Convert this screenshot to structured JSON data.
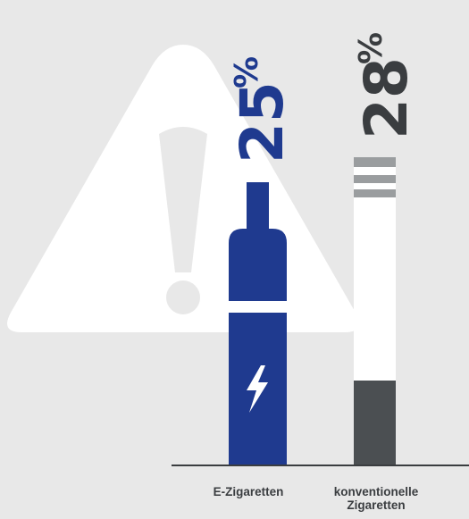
{
  "chart_data": {
    "type": "bar",
    "categories": [
      "E-Zigaretten",
      "konventionelle\nZigaretten"
    ],
    "values": [
      25,
      28
    ],
    "value_labels": [
      "25",
      "28"
    ],
    "unit": "%",
    "ylim": [
      0,
      28
    ],
    "title": "",
    "xlabel": "",
    "ylabel": ""
  },
  "colors": {
    "background": "#e8e8e8",
    "warning_triangle": "#ffffff",
    "warning_mark": "#e8e8e8",
    "ecig_body": "#1f3a8f",
    "ecig_band": "#ffffff",
    "ecig_bolt": "#ffffff",
    "cig_paper": "#ffffff",
    "cig_stripes": "#9a9d9f",
    "cig_filter": "#4b4f52",
    "ecig_label": "#1f3a8f",
    "cig_label": "#3a3d40",
    "baseline": "#3a3d40"
  },
  "icons": {
    "background": "warning-triangle-icon",
    "ecig_symbol": "lightning-bolt-icon"
  }
}
